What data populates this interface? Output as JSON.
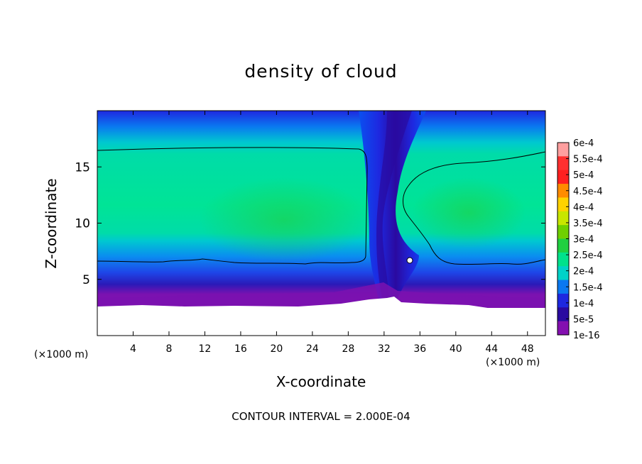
{
  "chart_data": {
    "type": "contour",
    "title": "density of cloud",
    "xlabel": "X-coordinate",
    "ylabel": "Z-coordinate",
    "x_unit_left": "(×1000 m)",
    "x_unit_right": "(×1000 m)",
    "footnote": "CONTOUR INTERVAL = 2.000E-04",
    "xlim": [
      0,
      50
    ],
    "ylim": [
      0,
      20
    ],
    "x_ticks": [
      4,
      8,
      12,
      16,
      20,
      24,
      28,
      32,
      36,
      40,
      44,
      48
    ],
    "y_ticks": [
      5,
      10,
      15
    ],
    "colorbar": {
      "labels": [
        "6e-4",
        "5.5e-4",
        "5e-4",
        "4.5e-4",
        "4e-4",
        "3.5e-4",
        "3e-4",
        "2.5e-4",
        "2e-4",
        "1.5e-4",
        "1e-4",
        "5e-5",
        "1e-16"
      ],
      "colors": [
        "#ff9f9f",
        "#ff3030",
        "#ff2020",
        "#ff8c00",
        "#ffd200",
        "#c8e600",
        "#6fd000",
        "#20d040",
        "#00e28c",
        "#00d2c8",
        "#0a78f0",
        "#1e28e0",
        "#2a0aa0",
        "#8410b0"
      ]
    },
    "field_regions": {
      "top_boundary_km": 20,
      "plateau_left": {
        "x": [
          0,
          29.8
        ],
        "z": [
          6.5,
          16.6
        ],
        "value": "2.5e-4"
      },
      "plateau_right": {
        "x": [
          33.5,
          50
        ],
        "z": [
          6.3,
          16.4
        ],
        "value": "2.5e-4"
      },
      "gap_low_density_x": [
        30,
        33.5
      ],
      "cloud_base_km": 2.7
    }
  },
  "colors": {
    "background": "#ffffff",
    "plot_background": "#ffffff",
    "contour_line": "#000000"
  }
}
